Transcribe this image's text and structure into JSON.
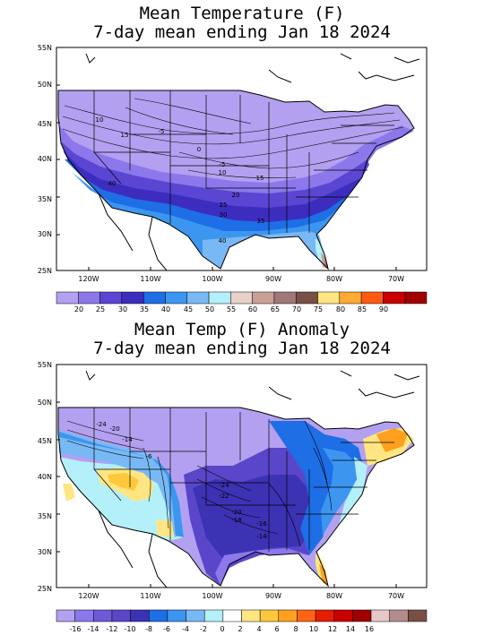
{
  "map1": {
    "title_line1": "Mean Temperature (F)",
    "title_line2": "7-day mean ending Jan 18 2024",
    "lat_labels": [
      "55N",
      "50N",
      "45N",
      "40N",
      "35N",
      "30N",
      "25N"
    ],
    "lon_labels": [
      "120W",
      "110W",
      "100W",
      "90W",
      "80W",
      "70W"
    ],
    "contour_labels": [
      "10",
      "15",
      "-5",
      "0",
      "-5",
      "10",
      "15",
      "40",
      "20",
      "25",
      "30",
      "35",
      "40"
    ],
    "legend_labels": [
      "20",
      "25",
      "30",
      "35",
      "40",
      "45",
      "50",
      "55",
      "60",
      "65",
      "70",
      "75",
      "80",
      "85",
      "90"
    ],
    "legend_colors": [
      "#b4a0f0",
      "#8c78eb",
      "#5a46d2",
      "#3c2dbe",
      "#1e6ee6",
      "#3c96f0",
      "#78b9f5",
      "#b4f0fa",
      "#e6d2c8",
      "#c8a096",
      "#a07878",
      "#785046",
      "#ffe682",
      "#ffaa32",
      "#ff5a14",
      "#c80000",
      "#a00000"
    ]
  },
  "map2": {
    "title_line1": "Mean Temp (F) Anomaly",
    "title_line2": "7-day mean ending Jan 18 2024",
    "lat_labels": [
      "55N",
      "50N",
      "45N",
      "40N",
      "35N",
      "30N",
      "25N"
    ],
    "lon_labels": [
      "120W",
      "110W",
      "100W",
      "90W",
      "80W",
      "70W"
    ],
    "contour_labels": [
      "-24",
      "-20",
      "-14",
      "-6",
      "-24",
      "-22",
      "-20",
      "-18",
      "-16",
      "-14"
    ],
    "legend_labels": [
      "-16",
      "-14",
      "-12",
      "-10",
      "-8",
      "-6",
      "-4",
      "-2",
      "0",
      "2",
      "4",
      "6",
      "8",
      "10",
      "12",
      "14",
      "16"
    ],
    "legend_colors": [
      "#b4a0f0",
      "#8c78eb",
      "#6e5ad7",
      "#5a46c8",
      "#3c32b4",
      "#1e6ee6",
      "#3c96f0",
      "#78b9f5",
      "#b4f0fa",
      "#ffffff",
      "#ffe682",
      "#ffc83c",
      "#ffa01e",
      "#ff6414",
      "#e61e00",
      "#c80000",
      "#a00000",
      "#e6c8c8",
      "#b48c8c",
      "#785046"
    ]
  }
}
